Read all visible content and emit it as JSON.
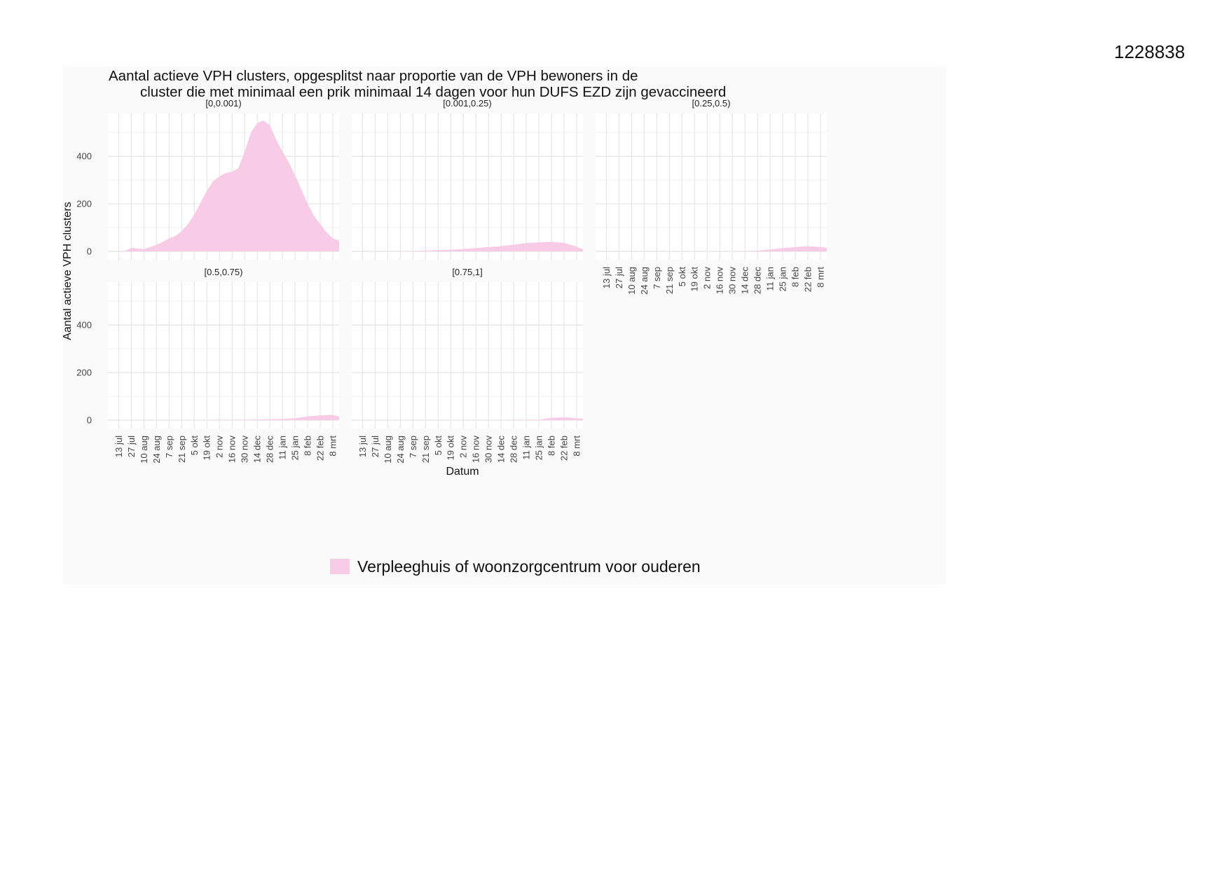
{
  "document_id": "1228838",
  "chart_data": {
    "type": "area",
    "title_lines": [
      "Aantal actieve VPH clusters, opgesplitst naar proportie van de VPH bewoners in de",
      "cluster die met minimaal een prik minimaal 14 dagen voor hun DUFS EZD zijn gevaccineerd"
    ],
    "xlabel": "Datum",
    "ylabel": "Aantal actieve VPH clusters",
    "ylim": [
      0,
      580
    ],
    "y_ticks": [
      0,
      200,
      400
    ],
    "x_tick_labels": [
      "13 jul",
      "27 jul",
      "10 aug",
      "24 aug",
      "7 sep",
      "21 sep",
      "5 okt",
      "19 okt",
      "2 nov",
      "16 nov",
      "30 nov",
      "14 dec",
      "28 dec",
      "11 jan",
      "25 jan",
      "8 feb",
      "22 feb",
      "8 mrt"
    ],
    "x_tick_days": [
      0,
      14,
      28,
      42,
      56,
      70,
      84,
      98,
      112,
      126,
      140,
      154,
      168,
      182,
      196,
      210,
      224,
      238
    ],
    "xlim_days": [
      -12,
      245
    ],
    "fill_color": "#f8cce6",
    "grid": true,
    "legend": {
      "position": "bottom",
      "label": "Verpleeghuis of woonzorgcentrum voor ouderen"
    },
    "panels": [
      {
        "label": "[0,0.001)",
        "x_days": [
          0,
          7,
          14,
          21,
          28,
          35,
          42,
          49,
          56,
          63,
          70,
          77,
          84,
          91,
          98,
          105,
          112,
          119,
          126,
          133,
          140,
          147,
          154,
          161,
          168,
          175,
          182,
          189,
          196,
          203,
          210,
          217,
          224,
          231,
          238,
          245
        ],
        "values": [
          0,
          2,
          15,
          12,
          10,
          18,
          28,
          40,
          55,
          65,
          85,
          115,
          155,
          205,
          255,
          295,
          315,
          330,
          335,
          350,
          420,
          500,
          540,
          550,
          530,
          470,
          420,
          375,
          320,
          260,
          200,
          150,
          115,
          80,
          55,
          45
        ]
      },
      {
        "label": "[0.001,0.25)",
        "x_days": [
          0,
          14,
          28,
          42,
          56,
          70,
          84,
          98,
          112,
          126,
          140,
          154,
          168,
          182,
          196,
          210,
          224,
          238,
          245
        ],
        "values": [
          0,
          0,
          0,
          1,
          2,
          3,
          5,
          7,
          10,
          14,
          18,
          22,
          28,
          35,
          38,
          40,
          36,
          20,
          8
        ]
      },
      {
        "label": "[0.25,0.5)",
        "x_days": [
          0,
          14,
          28,
          42,
          56,
          70,
          84,
          98,
          112,
          126,
          140,
          154,
          168,
          182,
          196,
          210,
          224,
          238,
          245
        ],
        "values": [
          0,
          0,
          0,
          0,
          0,
          0,
          0,
          0,
          0,
          0,
          0,
          1,
          3,
          8,
          14,
          18,
          22,
          18,
          15
        ]
      },
      {
        "label": "[0.5,0.75)",
        "x_days": [
          0,
          14,
          28,
          42,
          56,
          70,
          84,
          98,
          112,
          126,
          140,
          154,
          168,
          182,
          196,
          210,
          224,
          238,
          245
        ],
        "values": [
          0,
          0,
          0,
          0,
          0,
          0,
          0,
          0,
          1,
          1,
          2,
          3,
          4,
          5,
          8,
          16,
          20,
          22,
          15
        ]
      },
      {
        "label": "[0.75,1]",
        "x_days": [
          0,
          14,
          28,
          42,
          56,
          70,
          84,
          98,
          112,
          126,
          140,
          154,
          168,
          182,
          196,
          210,
          224,
          238,
          245
        ],
        "values": [
          0,
          0,
          0,
          0,
          0,
          0,
          0,
          0,
          0,
          0,
          0,
          0,
          1,
          1,
          2,
          10,
          12,
          8,
          6
        ]
      }
    ]
  }
}
